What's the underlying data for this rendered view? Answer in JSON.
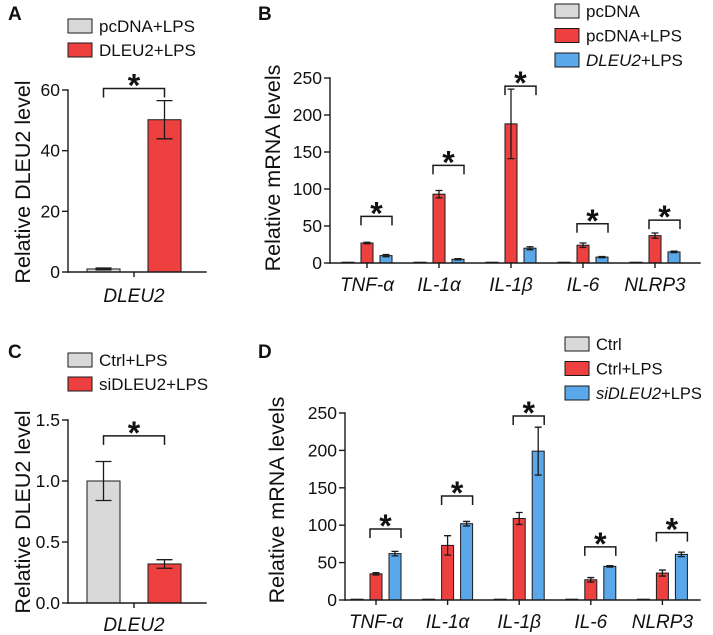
{
  "chart_data": [
    {
      "panel_label": "A",
      "type": "bar",
      "title": "",
      "xlabel": "",
      "ylabel": "Relative DLEU2 level",
      "categories": [
        "DLEU2"
      ],
      "categories_italic": true,
      "ylim": [
        0,
        60
      ],
      "yticks": [
        0,
        20,
        40,
        60
      ],
      "ytick_labels": [
        "0",
        "20",
        "40",
        "60"
      ],
      "grid": false,
      "legend_position": "top-left",
      "series": [
        {
          "legend": [
            {
              "text": "pcDNA+LPS",
              "italic": false
            }
          ],
          "color": "#d9d9d9",
          "values": [
            1.0
          ],
          "errors": [
            0.3
          ]
        },
        {
          "legend": [
            {
              "text": "DLEU2+LPS",
              "italic": false
            }
          ],
          "color": "#ef4040",
          "values": [
            50.2
          ],
          "errors": [
            6.3
          ]
        }
      ],
      "significance": [
        {
          "category": 0,
          "from_series": 0,
          "to_series": 1,
          "level": 60.5,
          "label": "*"
        }
      ]
    },
    {
      "panel_label": "B",
      "type": "bar",
      "title": "",
      "xlabel": "",
      "ylabel": "Relative mRNA levels",
      "categories": [
        "TNF-α",
        "IL-1α",
        "IL-1β",
        "IL-6",
        "NLRP3"
      ],
      "categories_italic": true,
      "ylim": [
        0,
        250
      ],
      "yticks": [
        0,
        50,
        100,
        150,
        200,
        250
      ],
      "ytick_labels": [
        "0",
        "50",
        "100",
        "150",
        "200",
        "250"
      ],
      "grid": false,
      "legend_position": "top-right",
      "series": [
        {
          "legend": [
            {
              "text": "pcDNA",
              "italic": false
            }
          ],
          "color": "#d9d9d9",
          "values": [
            1,
            1,
            1,
            1,
            1
          ],
          "errors": [
            0,
            0,
            0,
            0,
            0
          ]
        },
        {
          "legend": [
            {
              "text": "pcDNA+LPS",
              "italic": false
            }
          ],
          "color": "#ef4040",
          "values": [
            27,
            93,
            188,
            24,
            37
          ],
          "errors": [
            1,
            5,
            47,
            3,
            3.5
          ]
        },
        {
          "legend": [
            {
              "text": "DLEU2",
              "italic": true
            },
            {
              "text": "+LPS",
              "italic": false
            }
          ],
          "color": "#5aa8ea",
          "values": [
            10,
            5,
            20,
            8,
            15
          ],
          "errors": [
            1.5,
            0.8,
            2,
            0.8,
            1
          ]
        }
      ],
      "significance": [
        {
          "category": 0,
          "from_series": 1,
          "to_series": 2,
          "level": 63,
          "label": "*"
        },
        {
          "category": 1,
          "from_series": 1,
          "to_series": 2,
          "level": 132,
          "label": "*"
        },
        {
          "category": 2,
          "from_series": 1,
          "to_series": 2,
          "level": 239,
          "label": "*"
        },
        {
          "category": 3,
          "from_series": 1,
          "to_series": 2,
          "level": 53,
          "label": "*"
        },
        {
          "category": 4,
          "from_series": 1,
          "to_series": 2,
          "level": 58,
          "label": "*"
        }
      ]
    },
    {
      "panel_label": "C",
      "type": "bar",
      "title": "",
      "xlabel": "",
      "ylabel": "Relative DLEU2 level",
      "categories": [
        "DLEU2"
      ],
      "categories_italic": true,
      "ylim": [
        0,
        1.5
      ],
      "yticks": [
        0,
        0.5,
        1.0,
        1.5
      ],
      "ytick_labels": [
        "0.0",
        "0.5",
        "1.0",
        "1.5"
      ],
      "grid": false,
      "legend_position": "top-left",
      "series": [
        {
          "legend": [
            {
              "text": "Ctrl+LPS",
              "italic": false
            }
          ],
          "color": "#d9d9d9",
          "values": [
            1.0
          ],
          "errors": [
            0.16
          ]
        },
        {
          "legend": [
            {
              "text": "siDLEU2+LPS",
              "italic": false
            }
          ],
          "color": "#ef4040",
          "values": [
            0.32
          ],
          "errors": [
            0.035
          ]
        }
      ],
      "significance": [
        {
          "category": 0,
          "from_series": 0,
          "to_series": 1,
          "level": 1.37,
          "label": "*"
        }
      ]
    },
    {
      "panel_label": "D",
      "type": "bar",
      "title": "",
      "xlabel": "",
      "ylabel": "Relative mRNA levels",
      "categories": [
        "TNF-α",
        "IL-1α",
        "IL-1β",
        "IL-6",
        "NLRP3"
      ],
      "categories_italic": true,
      "ylim": [
        0,
        250
      ],
      "yticks": [
        0,
        50,
        100,
        150,
        200,
        250
      ],
      "ytick_labels": [
        "0",
        "50",
        "100",
        "150",
        "200",
        "250"
      ],
      "grid": false,
      "legend_position": "top-right",
      "series": [
        {
          "legend": [
            {
              "text": "Ctrl",
              "italic": false
            }
          ],
          "color": "#d9d9d9",
          "values": [
            1,
            1,
            1,
            1,
            1
          ],
          "errors": [
            0,
            0,
            0,
            0,
            0
          ]
        },
        {
          "legend": [
            {
              "text": "Ctrl+LPS",
              "italic": false
            }
          ],
          "color": "#ef4040",
          "values": [
            35,
            73,
            109,
            27,
            36
          ],
          "errors": [
            1.5,
            13,
            8,
            3,
            4
          ]
        },
        {
          "legend": [
            {
              "text": "siDLEU2",
              "italic": true
            },
            {
              "text": "+LPS",
              "italic": false
            }
          ],
          "color": "#5aa8ea",
          "values": [
            62,
            102,
            199,
            45,
            61
          ],
          "errors": [
            3,
            3,
            32,
            1,
            3
          ]
        }
      ],
      "significance": [
        {
          "category": 0,
          "from_series": 1,
          "to_series": 2,
          "level": 95,
          "label": "*"
        },
        {
          "category": 1,
          "from_series": 1,
          "to_series": 2,
          "level": 139,
          "label": "*"
        },
        {
          "category": 2,
          "from_series": 1,
          "to_series": 2,
          "level": 246,
          "label": "*"
        },
        {
          "category": 3,
          "from_series": 1,
          "to_series": 2,
          "level": 71,
          "label": "*"
        },
        {
          "category": 4,
          "from_series": 1,
          "to_series": 2,
          "level": 90,
          "label": "*"
        }
      ]
    }
  ]
}
